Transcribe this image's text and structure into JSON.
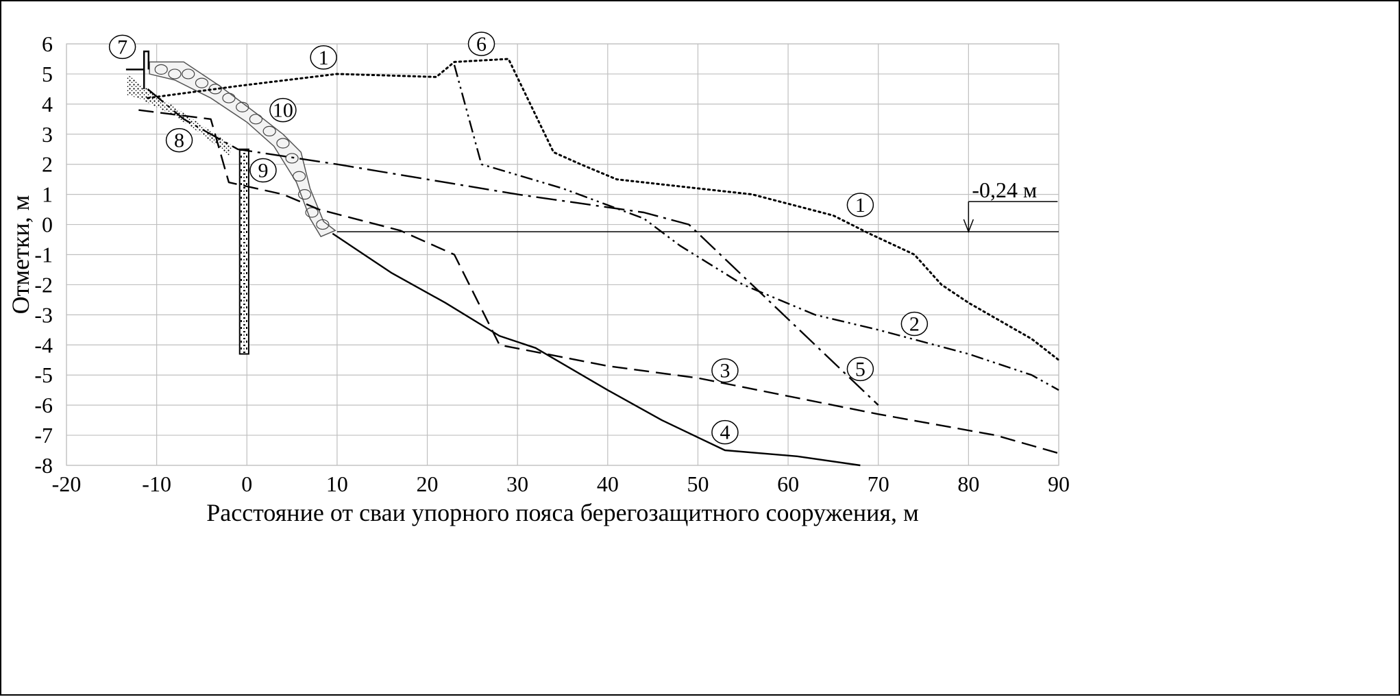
{
  "chart_data": {
    "type": "line",
    "title": "",
    "xlabel": "Расстояние от сваи упорного пояса берегозащитного сооружения, м",
    "ylabel": "Отметки, м",
    "xlim": [
      -20,
      90
    ],
    "ylim": [
      -8,
      6
    ],
    "x_ticks": [
      "-20",
      "-10",
      "0",
      "10",
      "20",
      "30",
      "40",
      "50",
      "60",
      "70",
      "80",
      "90"
    ],
    "y_ticks": [
      "6",
      "5",
      "4",
      "3",
      "2",
      "1",
      "0",
      "-1",
      "-2",
      "-3",
      "-4",
      "-5",
      "-6",
      "-7",
      "-8"
    ],
    "grid": true,
    "water_level": {
      "value": -0.24,
      "label": "-0,24 м"
    },
    "series": [
      {
        "id": "1",
        "style": "dotted",
        "points": [
          [
            -11,
            4.2
          ],
          [
            -6,
            4.4
          ],
          [
            -1,
            4.6
          ],
          [
            10,
            5.0
          ],
          [
            21,
            4.9
          ],
          [
            23,
            5.4
          ],
          [
            29,
            5.5
          ],
          [
            34,
            2.4
          ],
          [
            37,
            2.0
          ],
          [
            41,
            1.5
          ],
          [
            50,
            1.2
          ],
          [
            56,
            1.0
          ],
          [
            65,
            0.3
          ],
          [
            69,
            -0.3
          ],
          [
            74,
            -1.0
          ],
          [
            77,
            -2.0
          ],
          [
            80,
            -2.6
          ],
          [
            87,
            -3.8
          ],
          [
            90,
            -4.5
          ]
        ]
      },
      {
        "id": "2",
        "style": "dash-dot-dot",
        "points": [
          [
            23,
            5.3
          ],
          [
            26,
            2.0
          ],
          [
            35,
            1.2
          ],
          [
            44,
            0.2
          ],
          [
            48,
            -0.7
          ],
          [
            55,
            -2.0
          ],
          [
            63,
            -3.0
          ],
          [
            70,
            -3.5
          ],
          [
            80,
            -4.3
          ],
          [
            87,
            -5.0
          ],
          [
            90,
            -5.5
          ]
        ]
      },
      {
        "id": "3",
        "style": "dashed",
        "points": [
          [
            -12,
            3.8
          ],
          [
            -4,
            3.5
          ],
          [
            -2,
            1.4
          ],
          [
            4,
            1.0
          ],
          [
            8,
            0.5
          ],
          [
            17,
            -0.2
          ],
          [
            23,
            -1.0
          ],
          [
            28,
            -4.0
          ],
          [
            40,
            -4.7
          ],
          [
            50,
            -5.1
          ],
          [
            60,
            -5.7
          ],
          [
            70,
            -6.3
          ],
          [
            83,
            -7.0
          ],
          [
            90,
            -7.6
          ]
        ]
      },
      {
        "id": "4",
        "style": "solid",
        "points": [
          [
            9.5,
            -0.3
          ],
          [
            16,
            -1.6
          ],
          [
            22,
            -2.6
          ],
          [
            28,
            -3.7
          ],
          [
            32,
            -4.1
          ],
          [
            40,
            -5.5
          ],
          [
            46,
            -6.5
          ],
          [
            53,
            -7.5
          ],
          [
            61,
            -7.7
          ],
          [
            68,
            -8.0
          ]
        ]
      },
      {
        "id": "5",
        "style": "long-dash-dot",
        "points": [
          [
            -11,
            4.5
          ],
          [
            -7,
            3.5
          ],
          [
            -1,
            2.5
          ],
          [
            10,
            2.0
          ],
          [
            22,
            1.4
          ],
          [
            30,
            1.0
          ],
          [
            44,
            0.4
          ],
          [
            49,
            0.0
          ],
          [
            56,
            -2.0
          ],
          [
            70,
            -6.0
          ]
        ]
      }
    ],
    "callouts": [
      "1",
      "1",
      "2",
      "3",
      "4",
      "5",
      "6",
      "7",
      "8",
      "9",
      "10"
    ]
  }
}
